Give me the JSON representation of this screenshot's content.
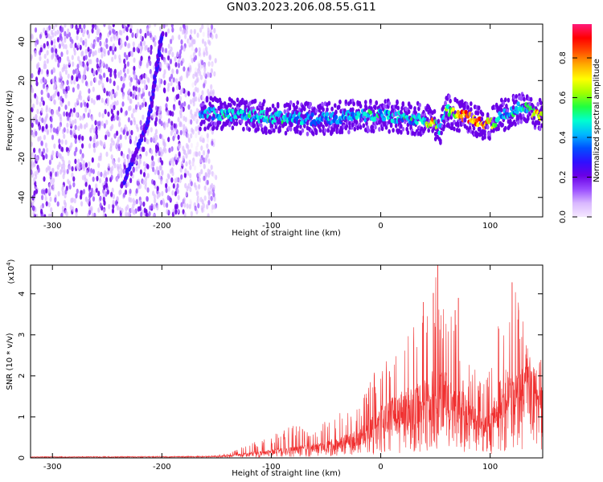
{
  "title": "GN03.2023.206.08.55.G11",
  "chart_data": [
    {
      "type": "heatmap",
      "title": "",
      "xlabel": "Height of straight line (km)",
      "ylabel": "Frequency (Hz)",
      "xlim": [
        -320,
        148
      ],
      "ylim": [
        -50,
        49
      ],
      "xticks": [
        -300,
        -200,
        -100,
        0,
        100
      ],
      "yticks": [
        -40,
        -20,
        0,
        20,
        40
      ],
      "colorbar": {
        "label": "Normalized spectral amplitude",
        "range": [
          0.0,
          0.97
        ],
        "ticks": [
          "0.0",
          "0.2",
          "0.4",
          "0.6",
          "0.8"
        ],
        "colormap": [
          "#f5e8ff",
          "#d9b8ff",
          "#9a4dff",
          "#6a00e6",
          "#2f10ff",
          "#0050ff",
          "#00b8ff",
          "#00ffd0",
          "#20ff40",
          "#a0ff00",
          "#ffff00",
          "#ffb000",
          "#ff5000",
          "#ff0000",
          "#ff1a7a"
        ]
      },
      "features": {
        "noise_region_x": [
          -320,
          -150
        ],
        "ridge_line": {
          "x": [
            -236,
            -212,
            -200
          ],
          "y": [
            -34,
            0,
            44
          ]
        },
        "signal_band": {
          "x": [
            -165,
            -150,
            -120,
            -100,
            -80,
            -60,
            -40,
            -20,
            0,
            20,
            40,
            48,
            55,
            60,
            70,
            80,
            90,
            100,
            110,
            120,
            130,
            140,
            148
          ],
          "y": [
            3,
            3,
            2,
            1,
            1,
            0,
            1,
            2,
            2,
            1,
            0,
            -2,
            -5,
            5,
            2,
            1,
            -1,
            -3,
            2,
            4,
            7,
            3,
            2
          ],
          "amp": [
            0.45,
            0.5,
            0.5,
            0.5,
            0.5,
            0.45,
            0.45,
            0.5,
            0.5,
            0.5,
            0.55,
            0.9,
            0.4,
            0.6,
            0.85,
            0.9,
            0.9,
            0.8,
            0.45,
            0.5,
            0.5,
            0.8,
            0.8
          ]
        }
      }
    },
    {
      "type": "line",
      "title": "",
      "xlabel": "Height of straight line (km)",
      "ylabel": "SNR (10 * v/v)",
      "multiplier_label": "(x10",
      "multiplier_exp": "4",
      "multiplier_close": ")",
      "xlim": [
        -320,
        148
      ],
      "ylim": [
        0,
        4.7
      ],
      "xticks": [
        -300,
        -200,
        -100,
        0,
        100
      ],
      "yticks": [
        0,
        1,
        2,
        3,
        4
      ],
      "color": "#f03030",
      "envelope": {
        "x": [
          -320,
          -160,
          -140,
          -120,
          -100,
          -80,
          -60,
          -40,
          -20,
          0,
          20,
          40,
          52,
          60,
          70,
          75,
          85,
          95,
          100,
          110,
          120,
          130,
          135,
          148
        ],
        "mean": [
          0.02,
          0.03,
          0.05,
          0.1,
          0.15,
          0.2,
          0.25,
          0.35,
          0.5,
          0.9,
          1.2,
          1.4,
          1.6,
          1.5,
          1.3,
          1.2,
          1.0,
          0.7,
          0.8,
          1.5,
          1.6,
          1.6,
          1.8,
          1.7
        ],
        "max": [
          0.05,
          0.06,
          0.1,
          0.35,
          0.55,
          0.8,
          0.7,
          1.1,
          1.3,
          2.4,
          3.0,
          3.8,
          4.75,
          3.6,
          3.9,
          2.4,
          2.2,
          1.8,
          2.3,
          3.8,
          4.3,
          3.6,
          2.5,
          1.9
        ]
      },
      "peaks": [
        {
          "x": 52,
          "y": 4.75
        },
        {
          "x": 39,
          "y": 3.8
        },
        {
          "x": 48,
          "y": 4.02
        },
        {
          "x": 71,
          "y": 3.9
        },
        {
          "x": 68,
          "y": 3.6
        },
        {
          "x": 120,
          "y": 4.28
        },
        {
          "x": 126,
          "y": 3.6
        }
      ]
    }
  ]
}
